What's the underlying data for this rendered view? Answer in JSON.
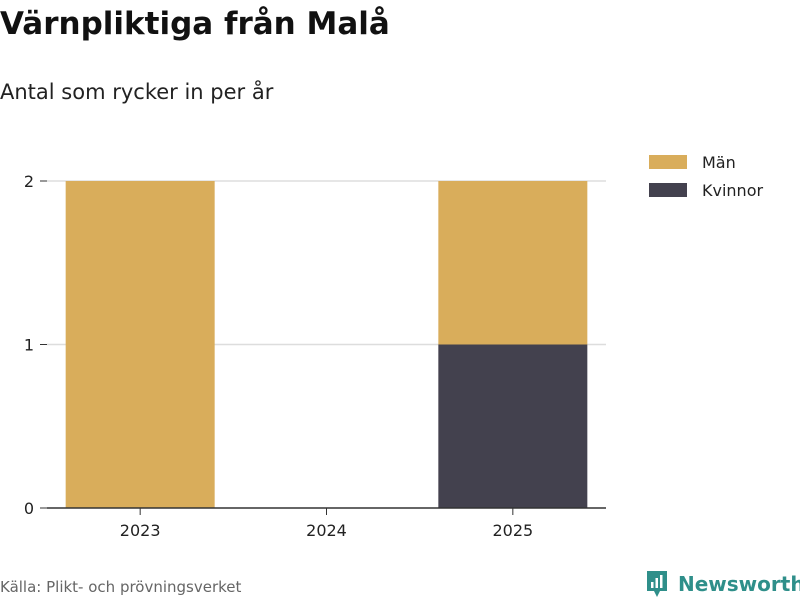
{
  "title": "Värnpliktiga från Malå",
  "subtitle": "Antal som rycker in per år",
  "source": "Källa: Plikt- och prövningsverket",
  "brand": {
    "name": "Newsworthy",
    "icon": "newsworthy-logo-icon",
    "color": "#2f8f8a"
  },
  "legend": [
    {
      "label": "Män",
      "color": "#d9ad5b"
    },
    {
      "label": "Kvinnor",
      "color": "#43414e"
    }
  ],
  "chart_data": {
    "type": "bar",
    "stacked": true,
    "title": "Värnpliktiga från Malå",
    "subtitle": "Antal som rycker in per år",
    "categories": [
      "2023",
      "2024",
      "2025"
    ],
    "series": [
      {
        "name": "Kvinnor",
        "color": "#43414e",
        "values": [
          0,
          0,
          1
        ]
      },
      {
        "name": "Män",
        "color": "#d9ad5b",
        "values": [
          2,
          0,
          1
        ]
      }
    ],
    "yticks": [
      0,
      1,
      2
    ],
    "ylim": [
      0,
      2
    ],
    "xlabel": "",
    "ylabel": "",
    "grid": true,
    "legend_position": "top-right"
  }
}
